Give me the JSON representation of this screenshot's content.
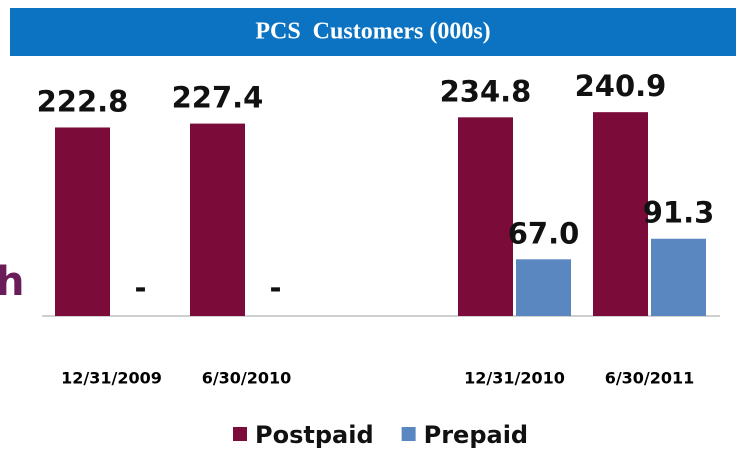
{
  "chart_data": {
    "type": "bar",
    "title": "PCS  Customers (000s)",
    "categories": [
      "12/31/2009",
      "6/30/2010",
      "12/31/2010",
      "6/30/2011"
    ],
    "series": [
      {
        "name": "Postpaid",
        "color": "#7b0c3a",
        "values": [
          222.8,
          227.4,
          234.8,
          240.9
        ]
      },
      {
        "name": "Prepaid",
        "color": "#5b87c1",
        "values": [
          null,
          null,
          67.0,
          91.3
        ],
        "value_labels": [
          "-",
          "-",
          "67.0",
          "91.3"
        ]
      }
    ],
    "ylim": [
      0,
      260
    ],
    "legend": "bottom"
  },
  "fragment": "h"
}
